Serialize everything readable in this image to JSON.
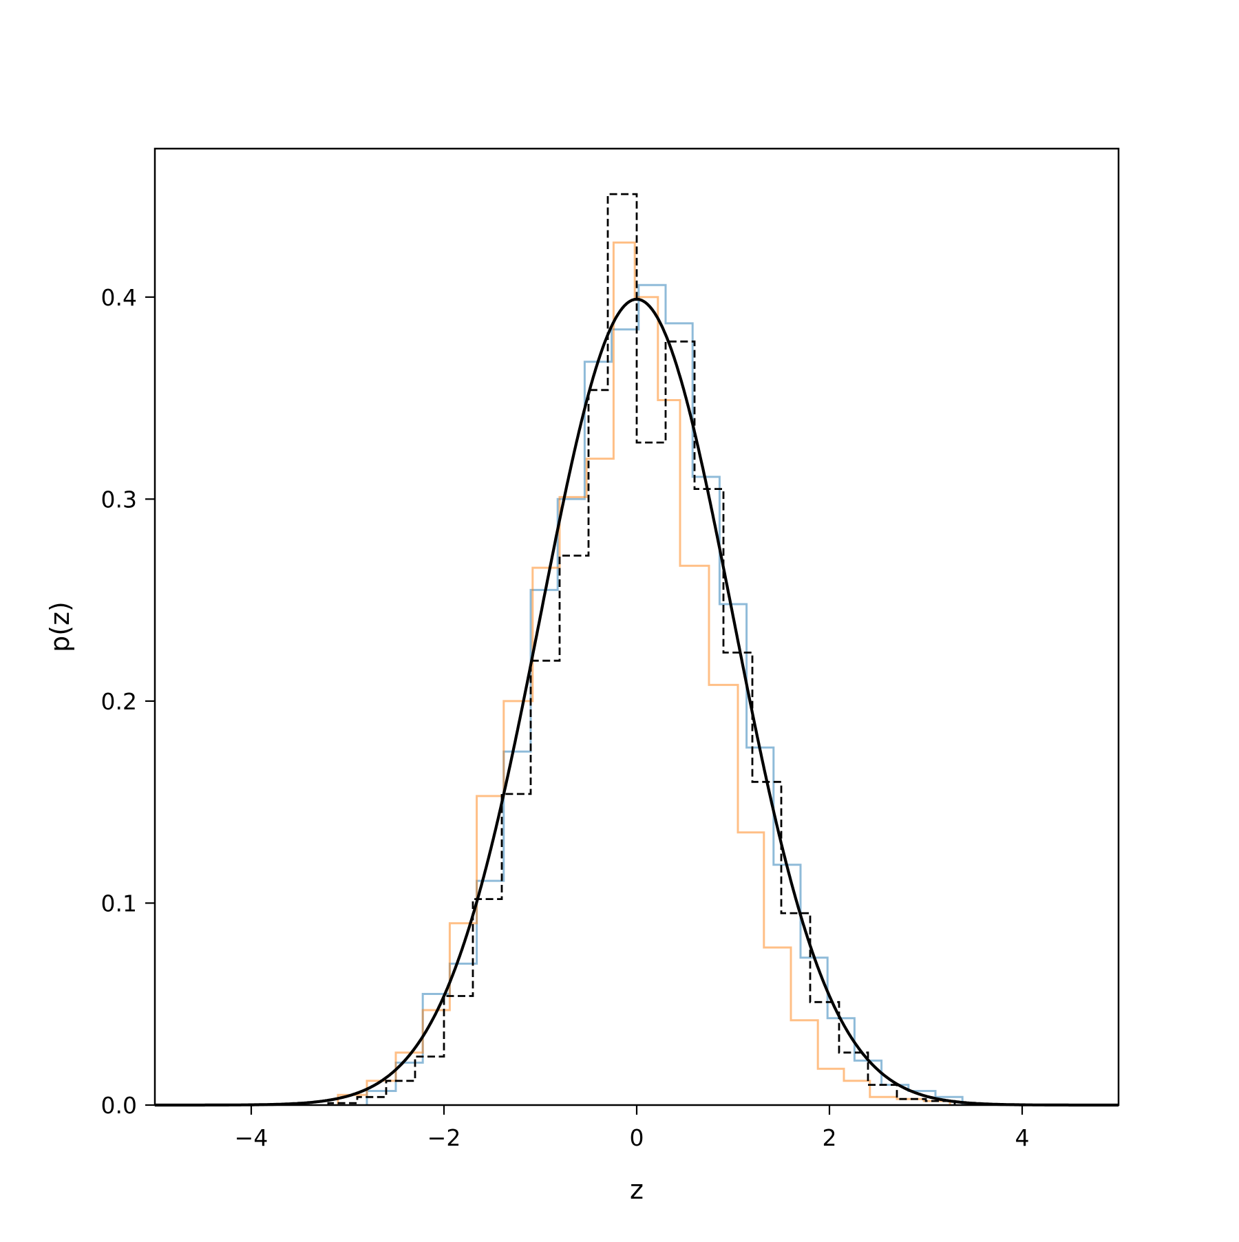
{
  "chart_data": {
    "type": "histogram",
    "title": "",
    "xlabel": "z",
    "ylabel": "p(z)",
    "xlim": [
      -5,
      5
    ],
    "ylim": [
      0,
      0.4735
    ],
    "x_ticks": [
      -4,
      -2,
      0,
      2,
      4
    ],
    "x_tick_labels": [
      "−4",
      "−2",
      "0",
      "2",
      "4"
    ],
    "y_ticks": [
      0.0,
      0.1,
      0.2,
      0.3,
      0.4
    ],
    "y_tick_labels": [
      "0.0",
      "0.1",
      "0.2",
      "0.3",
      "0.4"
    ],
    "grid": false,
    "legend": "none",
    "series": [
      {
        "style": "step",
        "color": "#1f77b4",
        "opacity": 0.5,
        "edges": [
          -2.8,
          -2.5,
          -2.22,
          -1.94,
          -1.66,
          -1.38,
          -1.1,
          -0.82,
          -0.54,
          -0.26,
          0.02,
          0.3,
          0.58,
          0.86,
          1.14,
          1.42,
          1.7,
          1.98,
          2.26,
          2.54,
          2.82,
          3.1,
          3.38
        ],
        "values": [
          0.007,
          0.021,
          0.055,
          0.07,
          0.111,
          0.175,
          0.255,
          0.3,
          0.368,
          0.384,
          0.406,
          0.387,
          0.311,
          0.248,
          0.177,
          0.119,
          0.073,
          0.043,
          0.022,
          0.01,
          0.007,
          0.004
        ]
      },
      {
        "style": "step",
        "color": "#ff7f0e",
        "opacity": 0.5,
        "edges": [
          -3.1,
          -2.8,
          -2.5,
          -2.22,
          -1.94,
          -1.66,
          -1.38,
          -1.08,
          -0.8,
          -0.52,
          -0.24,
          -0.02,
          0.22,
          0.45,
          0.75,
          1.05,
          1.32,
          1.6,
          1.88,
          2.15,
          2.42,
          2.7,
          2.98,
          3.25
        ],
        "values": [
          0.005,
          0.012,
          0.026,
          0.047,
          0.09,
          0.153,
          0.2,
          0.266,
          0.301,
          0.32,
          0.427,
          0.4,
          0.349,
          0.267,
          0.208,
          0.135,
          0.078,
          0.042,
          0.018,
          0.012,
          0.004,
          0.003,
          0.002
        ]
      },
      {
        "style": "step",
        "color": "#000000",
        "dashed": true,
        "edges": [
          -3.2,
          -2.9,
          -2.6,
          -2.3,
          -2.0,
          -1.7,
          -1.4,
          -1.1,
          -0.8,
          -0.5,
          -0.3,
          0.0,
          0.3,
          0.6,
          0.9,
          1.2,
          1.5,
          1.8,
          2.1,
          2.4,
          2.7,
          3.0,
          3.3
        ],
        "values": [
          0.001,
          0.004,
          0.012,
          0.024,
          0.054,
          0.102,
          0.154,
          0.22,
          0.272,
          0.354,
          0.451,
          0.328,
          0.378,
          0.305,
          0.224,
          0.16,
          0.095,
          0.051,
          0.026,
          0.01,
          0.003,
          0.002
        ]
      },
      {
        "style": "line",
        "color": "#000000",
        "function": "standard normal pdf",
        "x": [
          -5.0,
          -4.0,
          -3.5,
          -3.0,
          -2.5,
          -2.0,
          -1.5,
          -1.0,
          -0.5,
          0.0,
          0.5,
          1.0,
          1.5,
          2.0,
          2.5,
          3.0,
          3.5,
          4.0,
          5.0
        ],
        "y": [
          0.0,
          0.0001,
          0.0009,
          0.0044,
          0.0175,
          0.054,
          0.1295,
          0.242,
          0.3521,
          0.3989,
          0.3521,
          0.242,
          0.1295,
          0.054,
          0.0175,
          0.0044,
          0.0009,
          0.0001,
          0.0
        ]
      }
    ]
  }
}
